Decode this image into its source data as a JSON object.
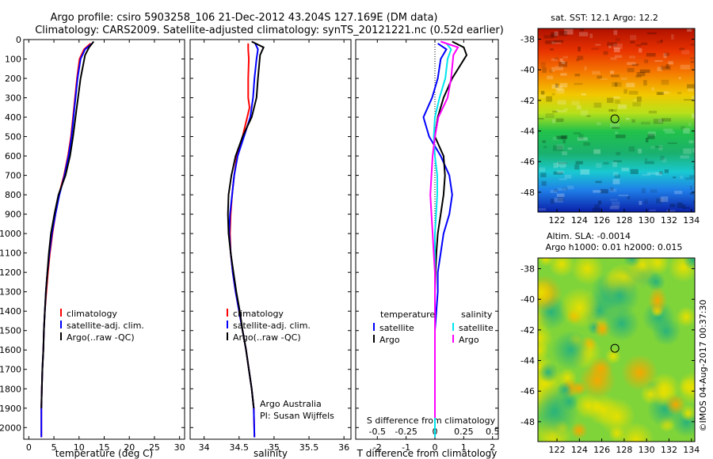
{
  "header": {
    "line1": "Argo profile: csiro 5903258_106 21-Dec-2012 43.204S 127.169E (DM data)",
    "line2": "Climatology: CARS2009. Satellite-adjusted climatology: synTS_20121221.nc (0.52d earlier)"
  },
  "side_label": "©IMOS 04-Aug-2017 00:37:30",
  "colors": {
    "climatology": "#ff0000",
    "satellite": "#0000ff",
    "argo": "#000000",
    "salinity_satellite": "#00e5ee",
    "salinity_argo": "#ff00ff"
  },
  "chart_data": [
    {
      "type": "line",
      "panel": "temperature",
      "xlabel": "temperature (deg C)",
      "ylabel": "",
      "xlim": [
        -1,
        31
      ],
      "ylim": [
        2060,
        0
      ],
      "xticks": [
        0,
        5,
        10,
        15,
        20,
        25,
        30
      ],
      "yticks": [
        0,
        100,
        200,
        300,
        400,
        500,
        600,
        700,
        800,
        900,
        1000,
        1100,
        1200,
        1300,
        1400,
        1500,
        1600,
        1700,
        1800,
        1900,
        2000
      ],
      "legend": [
        "climatology",
        "satellite-adj. clim.",
        "Argo(..raw -QC)"
      ],
      "legend_position": "lower-right",
      "series": [
        {
          "name": "climatology",
          "x": [
            12.3,
            11.0,
            10.1,
            9.6,
            9.2,
            8.8,
            8.4,
            7.8,
            7.0,
            6.0,
            5.3,
            4.7,
            4.2,
            3.8,
            3.5,
            3.2,
            3.0,
            2.9,
            2.7,
            2.6,
            2.5,
            2.5
          ],
          "y": [
            20,
            50,
            100,
            200,
            300,
            400,
            500,
            600,
            700,
            800,
            900,
            1000,
            1100,
            1200,
            1300,
            1400,
            1500,
            1600,
            1700,
            1800,
            1900,
            2050
          ]
        },
        {
          "name": "satellite-adj. clim.",
          "x": [
            12.6,
            11.2,
            10.3,
            9.7,
            9.3,
            8.9,
            8.5,
            7.9,
            7.1,
            6.1,
            5.3,
            4.6,
            4.1,
            3.7,
            3.4,
            3.2,
            3.0,
            2.9,
            2.7,
            2.6,
            2.5,
            2.5
          ],
          "y": [
            20,
            50,
            100,
            200,
            300,
            400,
            500,
            600,
            700,
            800,
            900,
            1000,
            1100,
            1200,
            1300,
            1400,
            1500,
            1600,
            1700,
            1800,
            1900,
            2050
          ]
        },
        {
          "name": "Argo(..raw -QC)",
          "x": [
            12.9,
            12.0,
            11.2,
            10.3,
            9.8,
            9.3,
            8.8,
            8.2,
            7.3,
            5.9,
            5.1,
            4.4,
            4.0,
            3.7,
            3.4,
            3.2,
            3.0,
            2.9,
            2.7,
            2.6,
            2.5
          ],
          "y": [
            10,
            40,
            80,
            200,
            300,
            400,
            500,
            600,
            700,
            800,
            900,
            1000,
            1100,
            1200,
            1300,
            1400,
            1500,
            1600,
            1700,
            1800,
            1900
          ]
        }
      ]
    },
    {
      "type": "line",
      "panel": "salinity",
      "xlabel": "salinity",
      "ylabel": "",
      "xlim": [
        33.8,
        36.1
      ],
      "ylim": [
        2060,
        0
      ],
      "xticks": [
        34,
        34.5,
        35,
        35.5,
        36
      ],
      "legend": [
        "climatology",
        "satellite-adj. clim.",
        "Argo(..raw -QC)"
      ],
      "legend_position": "lower-right",
      "annotation": [
        "Argo Australia",
        "PI: Susan Wijffels"
      ],
      "series": [
        {
          "name": "climatology",
          "x": [
            34.63,
            34.63,
            34.64,
            34.63,
            34.63,
            34.65,
            34.55,
            34.47,
            34.43,
            34.4,
            34.38,
            34.37,
            34.38,
            34.41,
            34.45,
            34.5,
            34.55,
            34.6,
            34.64,
            34.68,
            34.71,
            34.72
          ],
          "y": [
            20,
            50,
            100,
            200,
            300,
            350,
            500,
            600,
            700,
            800,
            900,
            1000,
            1100,
            1200,
            1300,
            1400,
            1500,
            1600,
            1700,
            1800,
            1900,
            2050
          ]
        },
        {
          "name": "satellite-adj. clim.",
          "x": [
            34.73,
            34.77,
            34.75,
            34.72,
            34.7,
            34.66,
            34.57,
            34.48,
            34.43,
            34.4,
            34.37,
            34.36,
            34.38,
            34.41,
            34.45,
            34.5,
            34.55,
            34.6,
            34.64,
            34.68,
            34.71,
            34.72
          ],
          "y": [
            20,
            50,
            100,
            200,
            300,
            400,
            500,
            600,
            700,
            800,
            900,
            1000,
            1100,
            1200,
            1300,
            1400,
            1500,
            1600,
            1700,
            1800,
            1900,
            2050
          ]
        },
        {
          "name": "Argo(..raw -QC)",
          "x": [
            34.68,
            34.85,
            34.8,
            34.77,
            34.75,
            34.68,
            34.55,
            34.45,
            34.39,
            34.35,
            34.34,
            34.35,
            34.38,
            34.42,
            34.46,
            34.51,
            34.55,
            34.6,
            34.64,
            34.68,
            34.71
          ],
          "y": [
            10,
            40,
            80,
            200,
            300,
            400,
            500,
            600,
            700,
            800,
            900,
            1000,
            1100,
            1200,
            1300,
            1400,
            1500,
            1600,
            1700,
            1800,
            1900
          ]
        }
      ]
    },
    {
      "type": "line",
      "panel": "difference",
      "xlabel": "T difference from climatology",
      "xlabel2": "S difference from climatology",
      "ylabel": "",
      "xlim": [
        -2.75,
        2.2
      ],
      "ylim": [
        2060,
        0
      ],
      "xticks": [
        -2,
        -1,
        0,
        1,
        2
      ],
      "xticks_labels": [
        "-2",
        "-1",
        "0",
        "1",
        "2"
      ],
      "xticks2": [
        -0.5,
        -0.25,
        0,
        0.25,
        0.5
      ],
      "legend_titles": [
        "temperature",
        "salinity"
      ],
      "legend": [
        "satellite",
        "Argo",
        "satellite",
        "Argo"
      ],
      "legend_position": "lower-center",
      "series": [
        {
          "name": "satellite",
          "group": "temperature",
          "x": [
            0.1,
            0.4,
            0.2,
            0.1,
            -0.1,
            -0.4,
            -0.2,
            0.2,
            0.5,
            0.6,
            0.5,
            0.3,
            0.2,
            0.1,
            0.1,
            0.05,
            0,
            0,
            0,
            0
          ],
          "y": [
            20,
            50,
            100,
            200,
            300,
            400,
            500,
            600,
            700,
            800,
            900,
            1000,
            1100,
            1200,
            1300,
            1400,
            1500,
            1600,
            1800,
            2050
          ]
        },
        {
          "name": "Argo",
          "group": "temperature",
          "x": [
            0.6,
            1.0,
            1.1,
            0.6,
            0.3,
            0.1,
            0.0,
            0.3,
            0.35,
            0.3,
            0.2,
            0.1,
            0.05,
            0.02,
            0,
            0,
            0,
            0,
            0
          ],
          "y": [
            10,
            40,
            80,
            200,
            300,
            400,
            500,
            600,
            700,
            800,
            900,
            1000,
            1100,
            1200,
            1300,
            1400,
            1600,
            1800,
            1950
          ]
        },
        {
          "name": "satellite",
          "group": "salinity",
          "x": [
            0.1,
            0.14,
            0.11,
            0.09,
            0.04,
            0.0,
            -0.01,
            0.0,
            0.02,
            0.02,
            0.01,
            0.0,
            0,
            0,
            0,
            0,
            0,
            0
          ],
          "y": [
            20,
            50,
            100,
            200,
            300,
            400,
            500,
            600,
            700,
            800,
            900,
            1000,
            1100,
            1200,
            1400,
            1600,
            1800,
            2050
          ]
        },
        {
          "name": "Argo",
          "group": "salinity",
          "x": [
            0.05,
            0.2,
            0.16,
            0.14,
            0.11,
            0.03,
            0.0,
            -0.02,
            -0.03,
            -0.04,
            -0.03,
            -0.02,
            -0.01,
            0,
            0,
            0,
            0,
            0
          ],
          "y": [
            10,
            40,
            80,
            200,
            300,
            400,
            500,
            600,
            700,
            800,
            900,
            1000,
            1100,
            1200,
            1400,
            1600,
            1800,
            1950
          ]
        }
      ]
    },
    {
      "type": "heatmap",
      "panel": "sst-map",
      "title": "sat. SST: 12.1  Argo: 12.2",
      "xlim": [
        120.3,
        134.3
      ],
      "ylim": [
        -49.3,
        -37.3
      ],
      "xticks": [
        122,
        124,
        126,
        128,
        130,
        132,
        134
      ],
      "yticks": [
        -38,
        -40,
        -42,
        -44,
        -46,
        -48
      ],
      "marker": {
        "lon": 127.17,
        "lat": -43.2
      }
    },
    {
      "type": "heatmap",
      "panel": "sla-map",
      "title": "Altim. SLA: -0.0014",
      "subtitle": "Argo h1000: 0.01  h2000: 0.015",
      "xlim": [
        120.3,
        134.3
      ],
      "ylim": [
        -49.3,
        -37.3
      ],
      "xticks": [
        122,
        124,
        126,
        128,
        130,
        132,
        134
      ],
      "yticks": [
        -38,
        -40,
        -42,
        -44,
        -46,
        -48
      ],
      "marker": {
        "lon": 127.17,
        "lat": -43.2
      }
    }
  ]
}
